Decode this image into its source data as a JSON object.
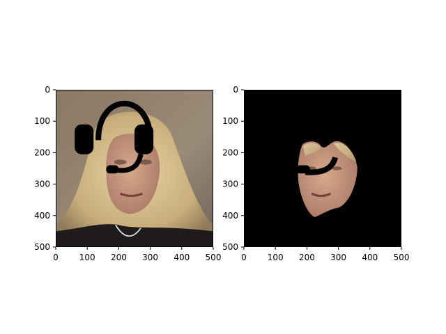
{
  "figure": {
    "panels": [
      {
        "id": "original",
        "description_visible": "photo of woman with headset overlay",
        "axis": {
          "xlim": [
            0,
            500
          ],
          "ylim": [
            0,
            500
          ],
          "x_ticks": [
            "0",
            "100",
            "200",
            "300",
            "400",
            "500"
          ],
          "y_ticks": [
            "0",
            "100",
            "200",
            "300",
            "400",
            "500"
          ]
        }
      },
      {
        "id": "masked",
        "description_visible": "segmented face with headset overlay on black background",
        "axis": {
          "xlim": [
            0,
            500
          ],
          "ylim": [
            0,
            500
          ],
          "x_ticks": [
            "0",
            "100",
            "200",
            "300",
            "400",
            "500"
          ],
          "y_ticks": [
            "0",
            "100",
            "200",
            "300",
            "400",
            "500"
          ]
        }
      }
    ],
    "colors": {
      "axes": "#000000",
      "background_masked": "#000000",
      "headset": "#000000"
    }
  }
}
